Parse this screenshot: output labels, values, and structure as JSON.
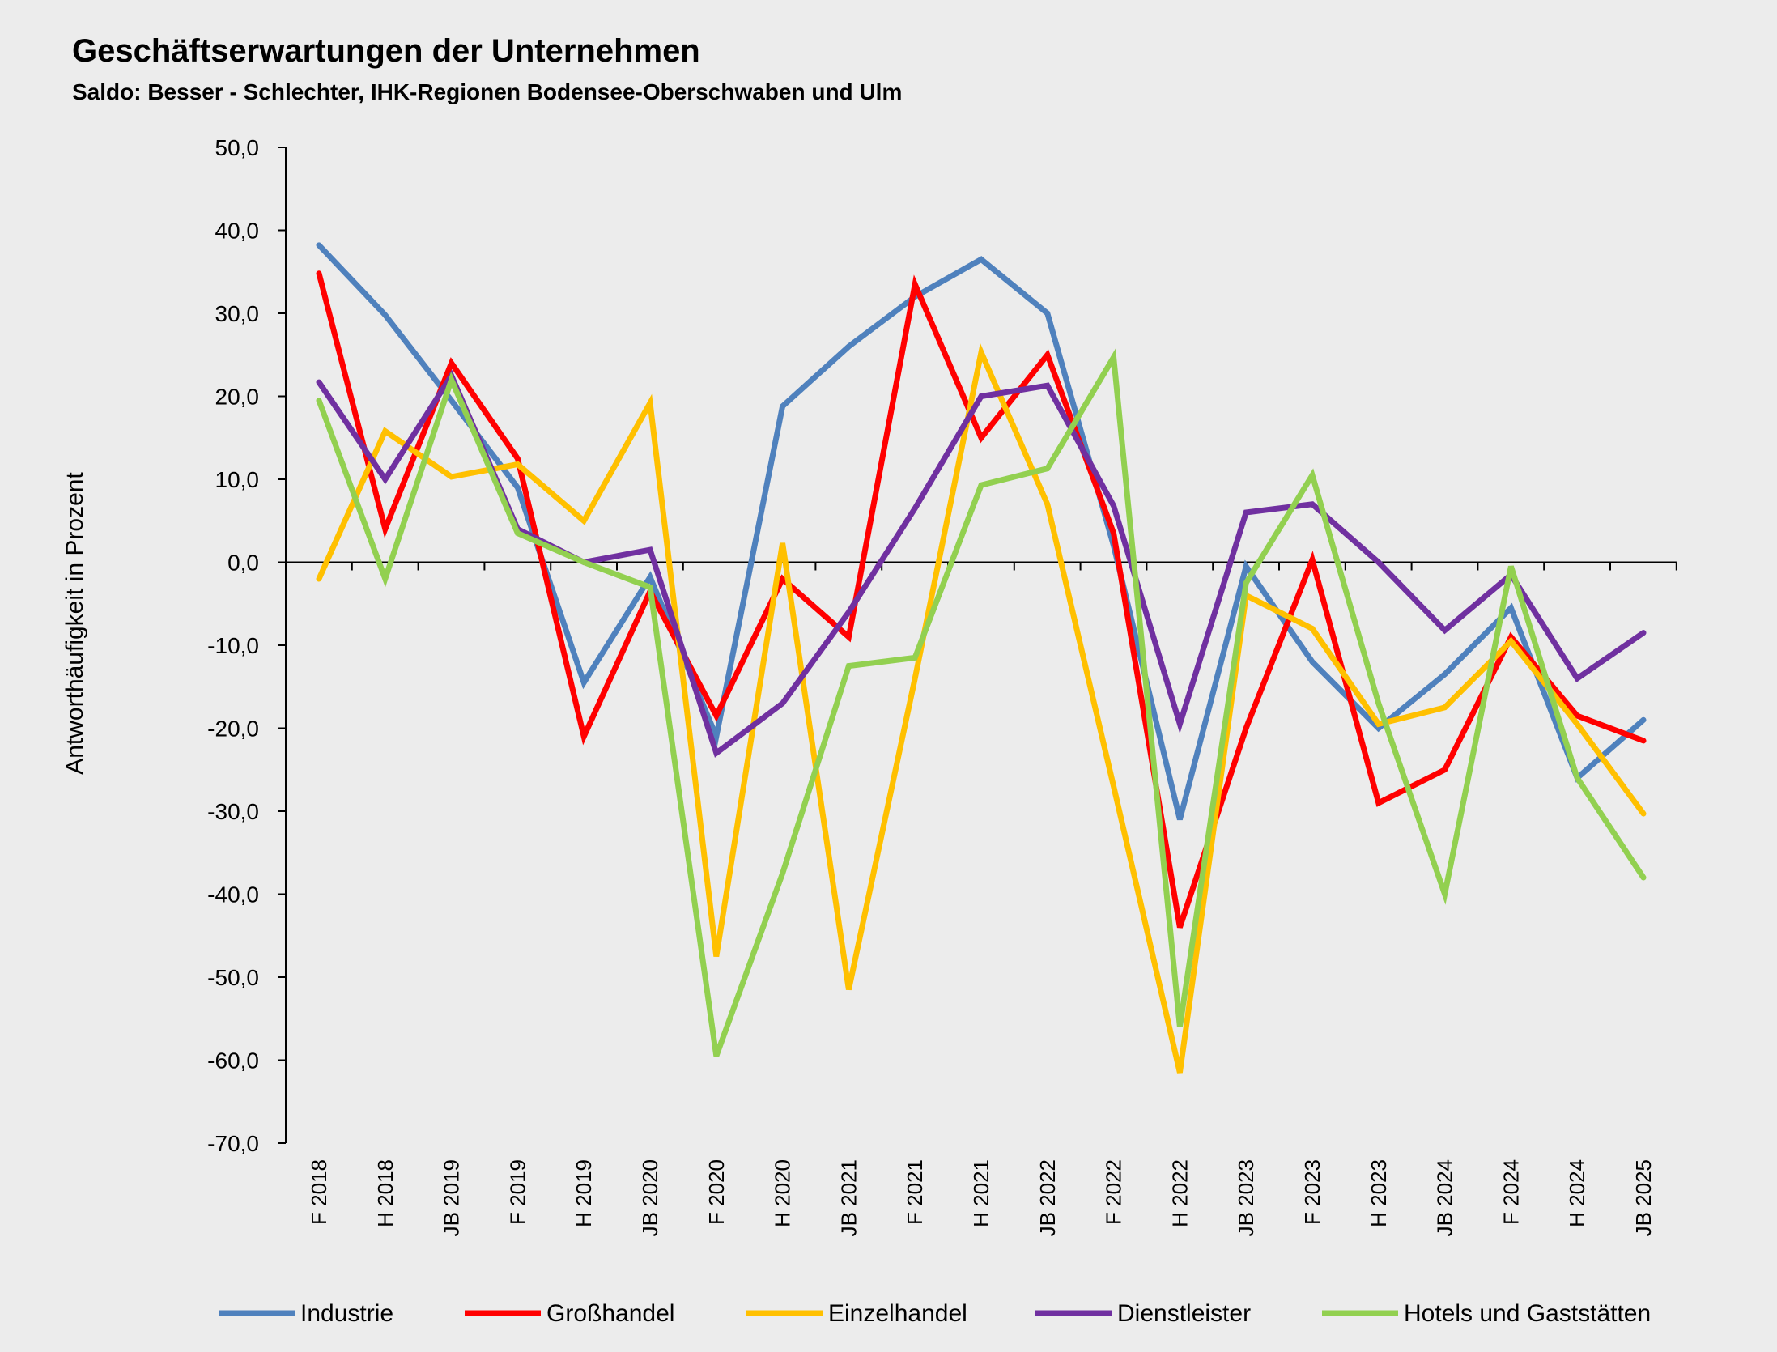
{
  "chart_data": {
    "type": "line",
    "title": "Geschäftserwartungen der Unternehmen",
    "subtitle": "Saldo: Besser - Schlechter, IHK-Regionen Bodensee-Oberschwaben und Ulm",
    "xlabel": "",
    "ylabel": "Antworthäufigkeit in Prozent",
    "ylim": [
      -70,
      50
    ],
    "yticks": [
      "50,0",
      "40,0",
      "30,0",
      "20,0",
      "10,0",
      "0,0",
      "-10,0",
      "-20,0",
      "-30,0",
      "-40,0",
      "-50,0",
      "-60,0",
      "-70,0"
    ],
    "categories": [
      "F 2018",
      "H 2018",
      "JB 2019",
      "F 2019",
      "H 2019",
      "JB 2020",
      "F 2020",
      "H 2020",
      "JB 2021",
      "F 2021",
      "H 2021",
      "JB 2022",
      "F 2022",
      "H 2022",
      "JB 2023",
      "F 2023",
      "H 2023",
      "JB 2024",
      "F 2024",
      "H 2024",
      "JB 2025"
    ],
    "legend_position": "bottom",
    "series": [
      {
        "name": "Industrie",
        "color": "#4f81bd",
        "values": [
          38.2,
          29.8,
          19.5,
          9.0,
          -14.5,
          -1.8,
          -21.0,
          18.8,
          26.0,
          32.0,
          36.5,
          30.0,
          2.0,
          -31.0,
          -0.5,
          -12.0,
          -20.0,
          -13.5,
          -5.5,
          -26.0,
          -19.0
        ]
      },
      {
        "name": "Großhandel",
        "color": "#ff0000",
        "values": [
          34.8,
          4.0,
          24.0,
          12.5,
          -21.0,
          -3.5,
          -18.5,
          -2.0,
          -9.0,
          33.5,
          15.0,
          25.0,
          3.5,
          -44.0,
          -20.0,
          0.3,
          -29.0,
          -25.0,
          -9.0,
          -18.5,
          -21.5
        ]
      },
      {
        "name": "Einzelhandel",
        "color": "#ffc000",
        "values": [
          -2.0,
          15.8,
          10.3,
          11.8,
          5.0,
          19.2,
          -47.5,
          2.3,
          -51.5,
          -14.0,
          25.3,
          7.0,
          -27.0,
          -61.5,
          -4.0,
          -8.0,
          -19.5,
          -17.5,
          -9.5,
          -19.5,
          -30.3
        ]
      },
      {
        "name": "Dienstleister",
        "color": "#7030a0",
        "values": [
          21.7,
          10.0,
          22.5,
          4.0,
          0.0,
          1.5,
          -23.0,
          -17.0,
          -6.0,
          6.5,
          20.0,
          21.3,
          6.8,
          -19.5,
          6.0,
          7.0,
          0.0,
          -8.2,
          -1.5,
          -14.0,
          -8.5
        ]
      },
      {
        "name": "Hotels und Gaststätten",
        "color": "#92d050",
        "values": [
          19.5,
          -2.0,
          22.0,
          3.5,
          0.0,
          -3.0,
          -59.5,
          -37.5,
          -12.5,
          -11.5,
          9.3,
          11.3,
          24.7,
          -56.0,
          -2.5,
          10.5,
          -17.0,
          -40.0,
          -0.5,
          -26.0,
          -38.0
        ]
      }
    ]
  }
}
